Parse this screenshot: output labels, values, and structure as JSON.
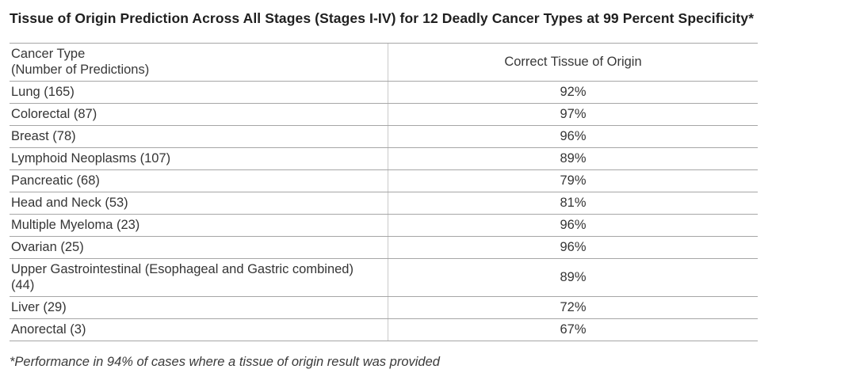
{
  "chart_data": {
    "type": "table",
    "title": "Tissue of Origin Prediction Across All Stages (Stages I-IV) for 12 Deadly Cancer Types at 99 Percent Specificity*",
    "columns": [
      "Cancer Type\n(Number of Predictions)",
      "Correct Tissue of Origin"
    ],
    "rows": [
      [
        "Lung (165)",
        "92%"
      ],
      [
        "Colorectal (87)",
        "97%"
      ],
      [
        "Breast (78)",
        "96%"
      ],
      [
        "Lymphoid Neoplasms (107)",
        "89%"
      ],
      [
        "Pancreatic (68)",
        "79%"
      ],
      [
        "Head and Neck (53)",
        "81%"
      ],
      [
        "Multiple Myeloma (23)",
        "96%"
      ],
      [
        "Ovarian (25)",
        "96%"
      ],
      [
        "Upper Gastrointestinal (Esophageal and Gastric combined) (44)",
        "89%"
      ],
      [
        "Liver (29)",
        "72%"
      ],
      [
        "Anorectal (3)",
        "67%"
      ]
    ],
    "footnote": "*Performance in 94% of cases where a tissue of origin result was provided",
    "layout": {
      "column1_align": "left",
      "column2_align": "center",
      "grid": "horizontal-rules-with-center-divider"
    },
    "colors": {
      "text": "#353535",
      "rule": "#a6a6a6",
      "background": "#ffffff"
    }
  }
}
